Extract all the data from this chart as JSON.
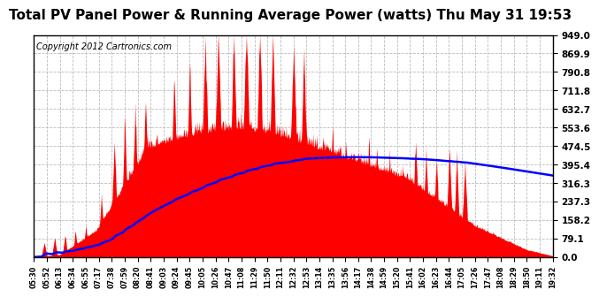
{
  "title": "Total PV Panel Power & Running Average Power (watts) Thu May 31 19:53",
  "copyright": "Copyright 2012 Cartronics.com",
  "yticks": [
    0.0,
    79.1,
    158.2,
    237.3,
    316.3,
    395.4,
    474.5,
    553.6,
    632.7,
    711.8,
    790.8,
    869.9,
    949.0
  ],
  "xtick_labels": [
    "05:30",
    "05:52",
    "06:13",
    "06:34",
    "06:55",
    "07:17",
    "07:38",
    "07:59",
    "08:20",
    "08:41",
    "09:03",
    "09:24",
    "09:45",
    "10:05",
    "10:26",
    "10:47",
    "11:08",
    "11:29",
    "11:50",
    "12:11",
    "12:32",
    "12:53",
    "13:14",
    "13:35",
    "13:56",
    "14:17",
    "14:38",
    "14:59",
    "15:20",
    "15:41",
    "16:02",
    "16:23",
    "16:44",
    "17:05",
    "17:26",
    "17:47",
    "18:08",
    "18:29",
    "18:50",
    "19:11",
    "19:32"
  ],
  "bg_color": "#ffffff",
  "fill_color": "#ff0000",
  "line_color": "#0000ff",
  "title_fontsize": 11,
  "copyright_fontsize": 7,
  "grid_color": "#bbbbbb",
  "border_color": "#000000"
}
